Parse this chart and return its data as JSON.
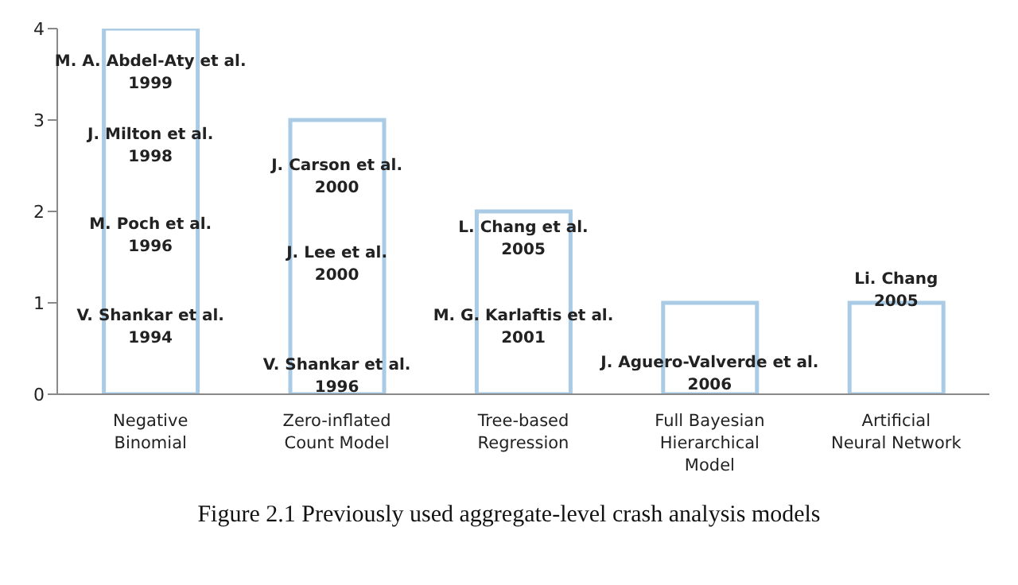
{
  "chart_data": {
    "type": "bar",
    "categories": [
      "Negative Binomial",
      "Zero-inflated Count Model",
      "Tree-based Regression",
      "Full Bayesian Hierarchical Model",
      "Artificial Neural Network"
    ],
    "values": [
      4,
      3,
      2,
      1,
      1
    ],
    "color": "#a9cbe6",
    "ylim": [
      0,
      4
    ],
    "yticks": [
      0,
      1,
      2,
      3,
      4
    ],
    "grid": false,
    "legend": false,
    "annotations": [
      "M. A. Abdel-Aty et al.\n1999",
      "J. Milton et al.\n1998",
      "M. Poch et al.\n1996",
      "V. Shankar et al.\n1994",
      "J. Carson et al.\n2000",
      "J. Lee et al.\n2000",
      "V. Shankar et al.\n1996",
      "L. Chang et al.\n2005",
      "M. G. Karlaftis  et al.\n2001",
      "J. Aguero-Valverde et al.\n2006",
      "Li. Chang\n2005",
      "Figure 2.1 Previously used aggregate-level crash analysis models"
    ]
  }
}
